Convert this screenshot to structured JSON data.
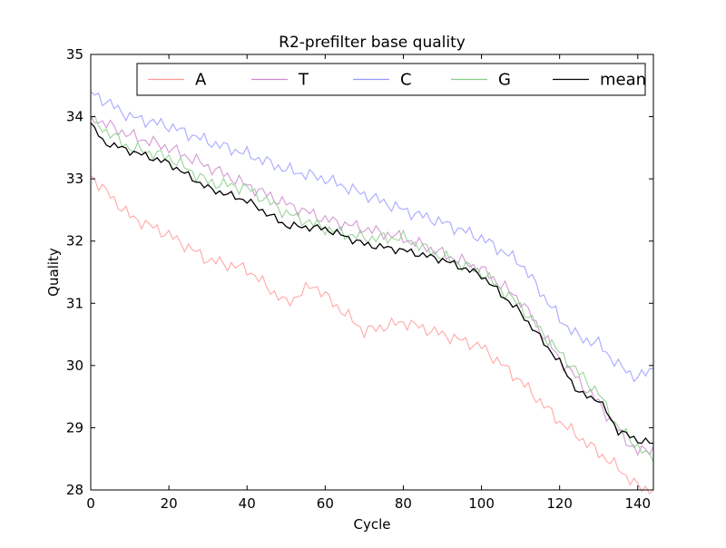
{
  "chart_data": {
    "type": "line",
    "title": "R2-prefilter base quality",
    "xlabel": "Cycle",
    "ylabel": "Quality",
    "xlim": [
      0,
      144
    ],
    "ylim": [
      28,
      35
    ],
    "xticks": [
      0,
      20,
      40,
      60,
      80,
      100,
      120,
      140
    ],
    "yticks": [
      28,
      29,
      30,
      31,
      32,
      33,
      34,
      35
    ],
    "legend": {
      "placement": "top-right",
      "columns": 5
    },
    "series": [
      {
        "name": "A",
        "color": "#ff9999",
        "points": [
          [
            0,
            33.05
          ],
          [
            10,
            32.4
          ],
          [
            20,
            32.1
          ],
          [
            30,
            31.7
          ],
          [
            40,
            31.55
          ],
          [
            50,
            31.0
          ],
          [
            57,
            31.3
          ],
          [
            70,
            30.55
          ],
          [
            80,
            30.7
          ],
          [
            90,
            30.5
          ],
          [
            100,
            30.3
          ],
          [
            110,
            29.75
          ],
          [
            120,
            29.1
          ],
          [
            130,
            28.6
          ],
          [
            135,
            28.35
          ],
          [
            140,
            28.05
          ],
          [
            144,
            28.0
          ]
        ]
      },
      {
        "name": "T",
        "color": "#cc88cc",
        "points": [
          [
            0,
            34.0
          ],
          [
            10,
            33.7
          ],
          [
            20,
            33.5
          ],
          [
            30,
            33.2
          ],
          [
            40,
            32.9
          ],
          [
            50,
            32.6
          ],
          [
            60,
            32.35
          ],
          [
            70,
            32.2
          ],
          [
            80,
            32.05
          ],
          [
            90,
            31.8
          ],
          [
            100,
            31.55
          ],
          [
            110,
            31.05
          ],
          [
            120,
            30.1
          ],
          [
            130,
            29.4
          ],
          [
            135,
            28.95
          ],
          [
            140,
            28.6
          ],
          [
            144,
            28.7
          ]
        ]
      },
      {
        "name": "C",
        "color": "#9999ff",
        "points": [
          [
            0,
            34.4
          ],
          [
            10,
            34.0
          ],
          [
            20,
            33.85
          ],
          [
            30,
            33.6
          ],
          [
            40,
            33.4
          ],
          [
            50,
            33.15
          ],
          [
            60,
            33.0
          ],
          [
            70,
            32.75
          ],
          [
            80,
            32.5
          ],
          [
            90,
            32.3
          ],
          [
            100,
            32.05
          ],
          [
            110,
            31.65
          ],
          [
            120,
            30.75
          ],
          [
            125,
            30.45
          ],
          [
            130,
            30.35
          ],
          [
            135,
            30.0
          ],
          [
            140,
            29.8
          ],
          [
            144,
            29.95
          ]
        ]
      },
      {
        "name": "G",
        "color": "#88cc88",
        "points": [
          [
            0,
            33.95
          ],
          [
            10,
            33.5
          ],
          [
            20,
            33.35
          ],
          [
            30,
            32.95
          ],
          [
            40,
            32.85
          ],
          [
            50,
            32.45
          ],
          [
            60,
            32.2
          ],
          [
            70,
            32.05
          ],
          [
            80,
            32.05
          ],
          [
            90,
            31.75
          ],
          [
            100,
            31.5
          ],
          [
            110,
            30.95
          ],
          [
            120,
            30.2
          ],
          [
            130,
            29.55
          ],
          [
            135,
            29.0
          ],
          [
            140,
            28.7
          ],
          [
            144,
            28.45
          ]
        ]
      },
      {
        "name": "mean",
        "color": "#000000",
        "points": [
          [
            0,
            33.9
          ],
          [
            3,
            33.6
          ],
          [
            10,
            33.45
          ],
          [
            20,
            33.25
          ],
          [
            30,
            32.85
          ],
          [
            40,
            32.65
          ],
          [
            50,
            32.25
          ],
          [
            60,
            32.2
          ],
          [
            70,
            31.95
          ],
          [
            80,
            31.85
          ],
          [
            90,
            31.7
          ],
          [
            100,
            31.45
          ],
          [
            110,
            30.85
          ],
          [
            120,
            30.05
          ],
          [
            125,
            29.55
          ],
          [
            130,
            29.45
          ],
          [
            135,
            28.95
          ],
          [
            140,
            28.8
          ],
          [
            144,
            28.75
          ]
        ]
      }
    ]
  }
}
